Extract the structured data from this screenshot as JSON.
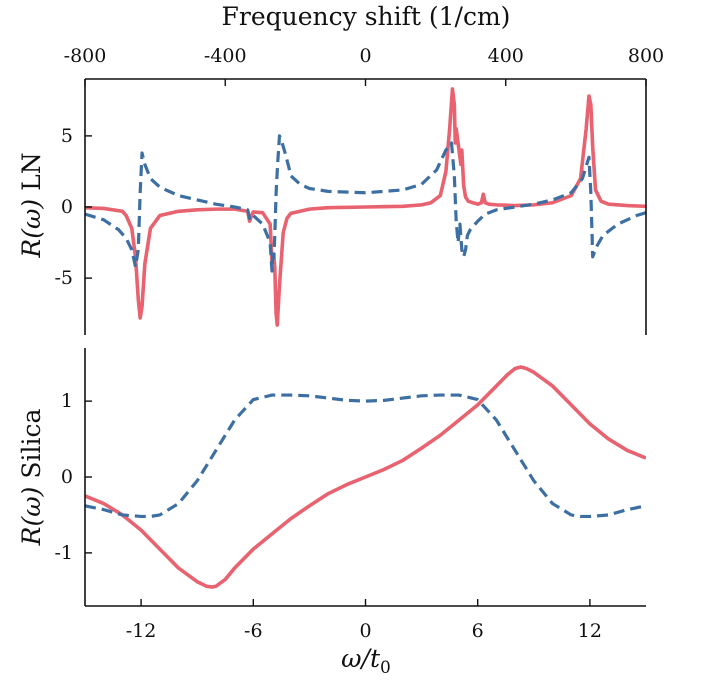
{
  "chart_data": [
    {
      "type": "line",
      "panel": "top",
      "top_axis_label": "Frequency shift (1/cm)",
      "top_axis_ticks": [
        -800,
        -400,
        0,
        400,
        800
      ],
      "top_axis_tick_labels": [
        "-800",
        "-400",
        "0",
        "400",
        "800"
      ],
      "top_axis_range": [
        -800,
        800
      ],
      "ylabel_prefix": "R(ω)",
      "ylabel_suffix": "LN",
      "xlim": [
        -15,
        15
      ],
      "ylim": [
        -9,
        9
      ],
      "yticks": [
        5,
        0,
        -5
      ],
      "ytick_labels": [
        "5",
        "0",
        "-5"
      ],
      "grid": false,
      "series": [
        {
          "style": "solid",
          "color": "#e8636f",
          "x": [
            -15,
            -14,
            -13,
            -12.8,
            -12.5,
            -12.3,
            -12.15,
            -12.05,
            -11.95,
            -11.8,
            -11.5,
            -11,
            -10,
            -9,
            -8,
            -7,
            -6.3,
            -6.2,
            -6.1,
            -6,
            -5.5,
            -5.1,
            -5.0,
            -4.9,
            -4.85,
            -4.78,
            -4.72,
            -4.6,
            -4.4,
            -4.2,
            -4,
            -3,
            -2,
            0,
            2,
            3,
            3.5,
            4,
            4.3,
            4.5,
            4.65,
            4.75,
            4.8,
            4.85,
            4.95,
            5.1,
            5.15,
            5.25,
            5.35,
            5.5,
            6,
            6.2,
            6.3,
            6.4,
            6.6,
            7,
            8,
            9,
            10,
            11,
            11.5,
            11.8,
            11.95,
            12.05,
            12.15,
            12.3,
            12.6,
            13,
            14,
            15
          ],
          "y": [
            -0.05,
            -0.1,
            -0.3,
            -0.6,
            -1.5,
            -3.5,
            -6.5,
            -7.8,
            -7.0,
            -4.0,
            -1.5,
            -0.6,
            -0.3,
            -0.2,
            -0.15,
            -0.15,
            -0.3,
            -1.0,
            -0.6,
            -0.35,
            -0.4,
            -1.2,
            -3.8,
            -3.5,
            -4.3,
            -7.5,
            -8.3,
            -5.5,
            -1.8,
            -0.8,
            -0.45,
            -0.15,
            -0.05,
            0.0,
            0.05,
            0.15,
            0.3,
            0.8,
            2.5,
            5.5,
            8.3,
            7.2,
            4.5,
            5.5,
            4.5,
            3.0,
            4.0,
            1.5,
            0.7,
            0.4,
            0.2,
            0.3,
            0.9,
            0.3,
            0.2,
            0.15,
            0.1,
            0.15,
            0.3,
            0.8,
            2.0,
            5.5,
            7.8,
            7.2,
            4.2,
            1.2,
            0.4,
            0.2,
            0.1,
            0.05
          ]
        },
        {
          "style": "dashed",
          "color": "#3d6fa3",
          "x": [
            -15,
            -14,
            -13.2,
            -12.8,
            -12.5,
            -12.3,
            -12.15,
            -12.05,
            -11.95,
            -11.8,
            -11.5,
            -11,
            -10.5,
            -10,
            -9,
            -8,
            -7,
            -6.3,
            -6.2,
            -6.1,
            -6,
            -5.5,
            -5.1,
            -5.0,
            -4.95,
            -4.9,
            -4.85,
            -4.78,
            -4.7,
            -4.6,
            -4.5,
            -4.3,
            -4.1,
            -4,
            -3.5,
            -3,
            -2,
            0,
            2,
            3,
            3.8,
            4.3,
            4.6,
            4.75,
            4.85,
            4.95,
            5.05,
            5.15,
            5.25,
            5.35,
            5.45,
            5.6,
            6,
            6.4,
            7,
            8,
            9,
            10,
            11,
            11.6,
            11.95,
            12.05,
            12.15,
            12.35,
            12.7,
            13.5,
            14.5,
            15
          ],
          "y": [
            -0.5,
            -0.9,
            -1.6,
            -2.2,
            -3.0,
            -4.2,
            -3.0,
            1.0,
            3.8,
            3.0,
            2.0,
            1.4,
            1.1,
            0.8,
            0.5,
            0.2,
            0.0,
            -0.2,
            -0.8,
            -0.5,
            -0.6,
            -1.2,
            -2.5,
            -4.5,
            -3.0,
            -3.6,
            -2.0,
            1.0,
            3.0,
            5.0,
            4.7,
            3.8,
            2.8,
            2.2,
            1.6,
            1.3,
            1.1,
            1.0,
            1.2,
            1.6,
            2.6,
            4.0,
            4.5,
            2.2,
            -1.0,
            -2.5,
            -1.2,
            -3.0,
            -3.5,
            -3.0,
            -2.0,
            -1.6,
            -1.0,
            -0.5,
            -0.2,
            0.0,
            0.2,
            0.5,
            1.0,
            2.0,
            3.5,
            1.0,
            -3.5,
            -2.8,
            -2.0,
            -1.2,
            -0.6,
            -0.4
          ]
        }
      ]
    },
    {
      "type": "line",
      "panel": "bottom",
      "ylabel_prefix": "R(ω)",
      "ylabel_suffix": "Silica",
      "xlabel_main": "ω/t",
      "xlabel_sub": "0",
      "xlim": [
        -15,
        15
      ],
      "ylim": [
        -1.7,
        1.7
      ],
      "xticks": [
        -12,
        -6,
        0,
        6,
        12
      ],
      "xtick_labels": [
        "-12",
        "-6",
        "0",
        "6",
        "12"
      ],
      "yticks": [
        1,
        0,
        -1
      ],
      "ytick_labels": [
        "1",
        "0",
        "-1"
      ],
      "grid": false,
      "series": [
        {
          "style": "solid",
          "color": "#e8636f",
          "x": [
            -15,
            -14,
            -13,
            -12,
            -11,
            -10,
            -9,
            -8.5,
            -8.2,
            -8,
            -7.5,
            -7,
            -6,
            -5,
            -4,
            -3,
            -2,
            -1,
            0,
            1,
            2,
            3,
            4,
            5,
            6,
            7,
            7.6,
            8,
            8.3,
            8.6,
            9,
            10,
            11,
            12,
            13,
            14,
            15
          ],
          "y": [
            -0.25,
            -0.35,
            -0.5,
            -0.7,
            -0.95,
            -1.2,
            -1.38,
            -1.44,
            -1.45,
            -1.44,
            -1.35,
            -1.2,
            -0.95,
            -0.75,
            -0.55,
            -0.38,
            -0.22,
            -0.1,
            0.0,
            0.1,
            0.22,
            0.38,
            0.55,
            0.75,
            0.95,
            1.2,
            1.35,
            1.43,
            1.45,
            1.43,
            1.38,
            1.2,
            0.95,
            0.7,
            0.5,
            0.35,
            0.25
          ]
        },
        {
          "style": "dashed",
          "color": "#3d6fa3",
          "x": [
            -15,
            -14,
            -13,
            -12,
            -11.5,
            -11,
            -10,
            -9,
            -8,
            -7,
            -6,
            -5,
            -4,
            -3,
            -2,
            -1,
            0,
            1,
            2,
            3,
            4,
            5,
            6,
            7,
            8,
            9,
            10,
            11,
            11.5,
            12,
            13,
            14,
            15
          ],
          "y": [
            -0.38,
            -0.43,
            -0.5,
            -0.52,
            -0.52,
            -0.5,
            -0.35,
            -0.05,
            0.35,
            0.75,
            1.02,
            1.08,
            1.08,
            1.07,
            1.04,
            1.01,
            1.0,
            1.01,
            1.04,
            1.07,
            1.08,
            1.08,
            1.02,
            0.75,
            0.35,
            -0.05,
            -0.35,
            -0.5,
            -0.52,
            -0.52,
            -0.5,
            -0.43,
            -0.38
          ]
        }
      ]
    }
  ]
}
